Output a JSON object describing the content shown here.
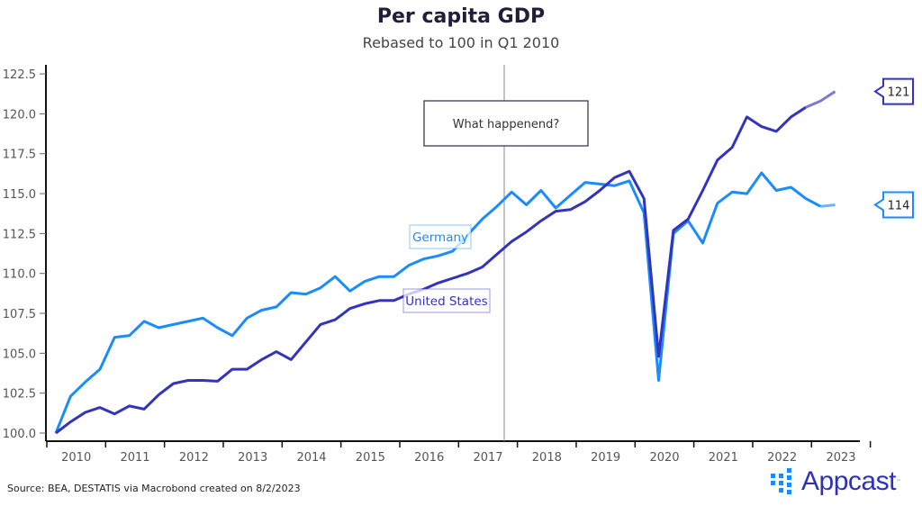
{
  "chart_data": {
    "type": "line",
    "title": "Per capita GDP",
    "subtitle": "Rebased to 100 in Q1 2010",
    "xlabel": "",
    "ylabel": "",
    "ylim": [
      100,
      122.5
    ],
    "yticks": [
      "100.0",
      "102.5",
      "105.0",
      "107.5",
      "110.0",
      "112.5",
      "115.0",
      "117.5",
      "120.0",
      "122.5"
    ],
    "ytick_values": [
      100,
      102.5,
      105,
      107.5,
      110,
      112.5,
      115,
      117.5,
      120,
      122.5
    ],
    "xticks": [
      "2010",
      "2011",
      "2012",
      "2013",
      "2014",
      "2015",
      "2016",
      "2017",
      "2018",
      "2019",
      "2020",
      "2021",
      "2022",
      "2023"
    ],
    "x_frequency": "quarterly, Q1 2010 to Q2 2023",
    "series": [
      {
        "name": "Germany",
        "color": "#1a8cff",
        "end_label": "114",
        "values": [
          100,
          102.3,
          103.2,
          104.0,
          106.0,
          106.1,
          107.0,
          106.6,
          106.8,
          107.0,
          107.2,
          106.6,
          106.1,
          107.2,
          107.7,
          107.9,
          108.8,
          108.7,
          109.1,
          109.8,
          108.9,
          109.5,
          109.8,
          109.8,
          110.5,
          110.9,
          111.1,
          111.4,
          112.4,
          113.4,
          114.2,
          115.1,
          114.3,
          115.2,
          114.1,
          114.9,
          115.7,
          115.6,
          115.5,
          115.8,
          113.8,
          103.3,
          112.5,
          113.3,
          111.9,
          114.4,
          115.1,
          115.0,
          116.3,
          115.2,
          115.4,
          114.7,
          114.2,
          114.3
        ]
      },
      {
        "name": "United States",
        "color": "#3333bb",
        "end_label": "121",
        "values": [
          100,
          100.7,
          101.3,
          101.6,
          101.2,
          101.7,
          101.5,
          102.4,
          103.1,
          103.3,
          103.3,
          103.25,
          104.0,
          104.0,
          104.6,
          105.1,
          104.6,
          105.7,
          106.8,
          107.1,
          107.8,
          108.1,
          108.3,
          108.3,
          108.7,
          109.0,
          109.4,
          109.7,
          110.0,
          110.4,
          111.2,
          112.0,
          112.6,
          113.3,
          113.9,
          114.0,
          114.5,
          115.2,
          116.0,
          116.4,
          114.7,
          104.8,
          112.7,
          113.4,
          115.2,
          117.1,
          117.9,
          119.8,
          119.2,
          118.9,
          119.8,
          120.4,
          120.8,
          121.4
        ]
      }
    ],
    "annotations": [
      {
        "text": "What happenend?",
        "marker_at": "between Q3 and Q4 2017"
      }
    ],
    "grid": false,
    "legend": "inline labels"
  },
  "source": "Source: BEA, DESTATIS via Macrobond created on 8/2/2023",
  "logo": "Appcast"
}
